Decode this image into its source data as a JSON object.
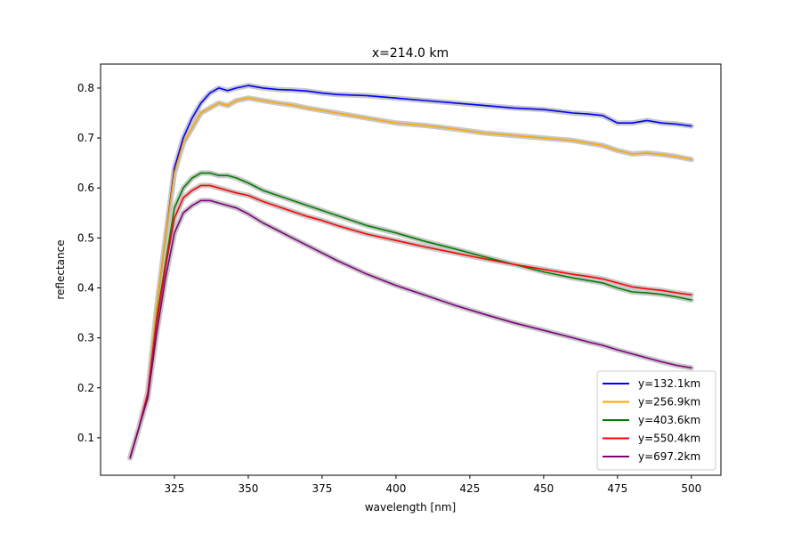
{
  "chart_data": {
    "type": "line",
    "title": "x=214.0 km",
    "xlabel": "wavelength [nm]",
    "ylabel": "reflectance",
    "xlim": [
      300,
      510
    ],
    "ylim": [
      0.025,
      0.848
    ],
    "xticks": [
      325,
      350,
      375,
      400,
      425,
      450,
      475,
      500
    ],
    "yticks": [
      0.1,
      0.2,
      0.3,
      0.4,
      0.5,
      0.6,
      0.7,
      0.8
    ],
    "grid": false,
    "legend_position": "lower-right",
    "uncertainty_band_color": "#c8c8c8",
    "series": [
      {
        "name": "y=132.1km",
        "color": "#0000ff",
        "x": [
          310,
          313,
          316,
          319,
          322,
          325,
          328,
          331,
          334,
          337,
          340,
          343,
          346,
          350,
          355,
          360,
          365,
          370,
          375,
          380,
          390,
          400,
          410,
          420,
          430,
          440,
          450,
          460,
          465,
          470,
          475,
          480,
          485,
          490,
          495,
          500
        ],
        "values": [
          0.06,
          0.12,
          0.19,
          0.36,
          0.5,
          0.64,
          0.7,
          0.74,
          0.77,
          0.79,
          0.8,
          0.795,
          0.8,
          0.805,
          0.8,
          0.797,
          0.796,
          0.794,
          0.79,
          0.787,
          0.785,
          0.78,
          0.775,
          0.77,
          0.765,
          0.76,
          0.757,
          0.75,
          0.748,
          0.745,
          0.73,
          0.73,
          0.735,
          0.73,
          0.728,
          0.724
        ]
      },
      {
        "name": "y=256.9km",
        "color": "#ffa500",
        "x": [
          310,
          313,
          316,
          319,
          322,
          325,
          328,
          331,
          334,
          337,
          340,
          343,
          346,
          350,
          355,
          360,
          365,
          370,
          375,
          380,
          390,
          400,
          410,
          420,
          430,
          440,
          450,
          460,
          465,
          470,
          475,
          480,
          485,
          490,
          495,
          500
        ],
        "values": [
          0.06,
          0.12,
          0.19,
          0.36,
          0.5,
          0.63,
          0.69,
          0.72,
          0.75,
          0.76,
          0.77,
          0.765,
          0.775,
          0.78,
          0.775,
          0.77,
          0.766,
          0.76,
          0.755,
          0.75,
          0.74,
          0.73,
          0.725,
          0.718,
          0.71,
          0.705,
          0.7,
          0.695,
          0.69,
          0.685,
          0.675,
          0.668,
          0.67,
          0.667,
          0.663,
          0.657
        ]
      },
      {
        "name": "y=403.6km",
        "color": "#008000",
        "x": [
          310,
          313,
          316,
          319,
          322,
          325,
          328,
          331,
          334,
          337,
          340,
          343,
          346,
          350,
          355,
          360,
          365,
          370,
          375,
          380,
          390,
          400,
          410,
          420,
          430,
          440,
          450,
          460,
          465,
          470,
          475,
          480,
          485,
          490,
          495,
          500
        ],
        "values": [
          0.06,
          0.12,
          0.19,
          0.34,
          0.45,
          0.56,
          0.6,
          0.62,
          0.63,
          0.63,
          0.625,
          0.625,
          0.62,
          0.61,
          0.595,
          0.585,
          0.575,
          0.565,
          0.555,
          0.545,
          0.525,
          0.51,
          0.493,
          0.478,
          0.462,
          0.447,
          0.432,
          0.42,
          0.415,
          0.41,
          0.4,
          0.392,
          0.39,
          0.387,
          0.382,
          0.376
        ]
      },
      {
        "name": "y=550.4km",
        "color": "#ff0000",
        "x": [
          310,
          313,
          316,
          319,
          322,
          325,
          328,
          331,
          334,
          337,
          340,
          343,
          346,
          350,
          355,
          360,
          365,
          370,
          375,
          380,
          390,
          400,
          410,
          420,
          430,
          440,
          450,
          460,
          465,
          470,
          475,
          480,
          485,
          490,
          495,
          500
        ],
        "values": [
          0.06,
          0.12,
          0.19,
          0.33,
          0.44,
          0.54,
          0.58,
          0.595,
          0.605,
          0.605,
          0.6,
          0.595,
          0.59,
          0.585,
          0.573,
          0.563,
          0.553,
          0.543,
          0.535,
          0.525,
          0.508,
          0.495,
          0.482,
          0.47,
          0.458,
          0.447,
          0.437,
          0.427,
          0.423,
          0.418,
          0.41,
          0.402,
          0.398,
          0.395,
          0.39,
          0.386
        ]
      },
      {
        "name": "y=697.2km",
        "color": "#800080",
        "x": [
          310,
          313,
          316,
          319,
          322,
          325,
          328,
          331,
          334,
          337,
          340,
          343,
          346,
          350,
          355,
          360,
          365,
          370,
          375,
          380,
          390,
          400,
          410,
          420,
          430,
          440,
          450,
          460,
          465,
          470,
          475,
          480,
          485,
          490,
          495,
          500
        ],
        "values": [
          0.06,
          0.12,
          0.18,
          0.31,
          0.42,
          0.51,
          0.55,
          0.565,
          0.575,
          0.575,
          0.57,
          0.565,
          0.56,
          0.548,
          0.53,
          0.515,
          0.5,
          0.485,
          0.47,
          0.455,
          0.428,
          0.405,
          0.385,
          0.365,
          0.347,
          0.33,
          0.315,
          0.3,
          0.292,
          0.285,
          0.276,
          0.268,
          0.26,
          0.252,
          0.245,
          0.24
        ]
      }
    ]
  }
}
